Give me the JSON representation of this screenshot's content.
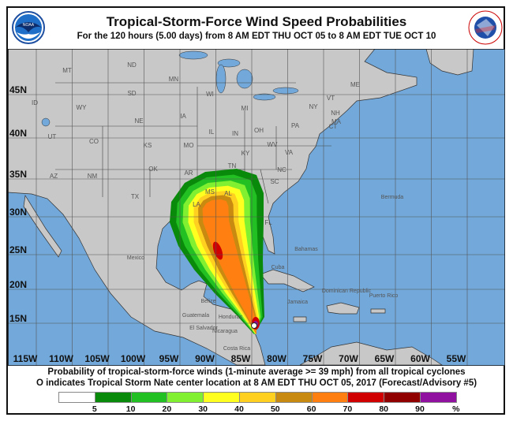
{
  "header": {
    "title": "Tropical-Storm-Force Wind Speed Probabilities",
    "subtitle": "For the 120 hours (5.00 days) from 8 AM EDT THU OCT 05 to 8 AM EDT TUE OCT 10"
  },
  "logos": {
    "left": {
      "name": "NOAA",
      "text": "NOAA"
    },
    "right": {
      "name": "National Weather Service",
      "text": "NATIONAL WEATHER SERVICE"
    }
  },
  "map": {
    "lat_labels": [
      "45N",
      "40N",
      "35N",
      "30N",
      "25N",
      "20N",
      "15N"
    ],
    "lon_labels": [
      "115W",
      "110W",
      "105W",
      "100W",
      "95W",
      "90W",
      "85W",
      "80W",
      "75W",
      "70W",
      "65W",
      "60W",
      "55W"
    ],
    "place_labels": [
      "MT",
      "ND",
      "MN",
      "WI",
      "MI",
      "ME",
      "ID",
      "WY",
      "SD",
      "NY",
      "VT",
      "NH",
      "MA",
      "CT",
      "IA",
      "NE",
      "PA",
      "OH",
      "IN",
      "IL",
      "UT",
      "CO",
      "KS",
      "MO",
      "WV",
      "KY",
      "VA",
      "NC",
      "SC",
      "TN",
      "OK",
      "AR",
      "AZ",
      "NM",
      "TX",
      "MS",
      "AL",
      "LA",
      "FL",
      "Bermuda",
      "Mexico",
      "Bahamas",
      "Cuba",
      "Jamaica",
      "Dominican Republic",
      "Puerto Rico",
      "Belize",
      "Guatemala",
      "Honduras",
      "El Salvador",
      "Nicaragua",
      "Costa Rica"
    ],
    "storm_center": {
      "name": "Tropical Storm Nate",
      "lat": 14.2,
      "lon": -82.5
    },
    "colors": {
      "land": "#c8c8c8",
      "ocean": "#72a8da",
      "grid": "#555555"
    }
  },
  "footer": {
    "line1": "Probability of tropical-storm-force winds (1-minute average >= 39 mph) from all tropical cyclones",
    "line2": "O indicates Tropical Storm Nate center location at 8 AM EDT THU OCT 05, 2017 (Forecast/Advisory #5)"
  },
  "legend": {
    "labels": [
      "5",
      "10",
      "20",
      "30",
      "40",
      "50",
      "60",
      "70",
      "80",
      "90",
      "%"
    ],
    "colors": [
      "#ffffff",
      "#0a8a0a",
      "#22c022",
      "#80f030",
      "#ffff20",
      "#ffd020",
      "#c88a10",
      "#ff8010",
      "#d00000",
      "#900000",
      "#9010a0"
    ]
  }
}
